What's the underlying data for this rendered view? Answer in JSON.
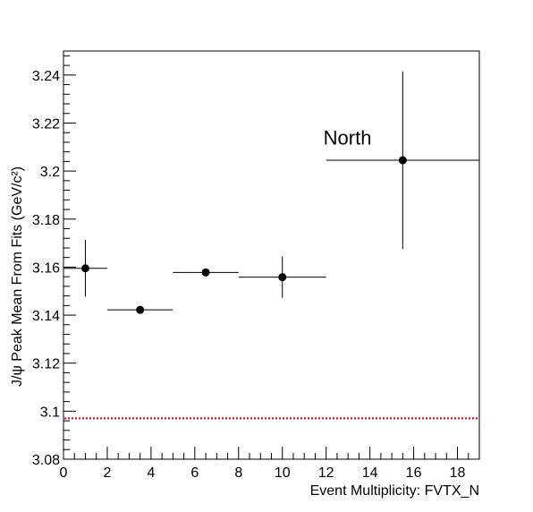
{
  "chart_data": {
    "type": "scatter",
    "xlabel": "Event Multiplicity: FVTX_N",
    "ylabel": "J/ψ Peak Mean From Fits (GeV/c²)",
    "xlim": [
      0,
      19
    ],
    "ylim": [
      3.08,
      3.25
    ],
    "x_ticks": [
      0,
      2,
      4,
      6,
      8,
      10,
      12,
      14,
      16,
      18
    ],
    "x_tick_labels": [
      "0",
      "2",
      "4",
      "6",
      "8",
      "10",
      "12",
      "14",
      "16",
      "18"
    ],
    "y_ticks": [
      3.08,
      3.1,
      3.12,
      3.14,
      3.16,
      3.18,
      3.2,
      3.22,
      3.24
    ],
    "y_tick_labels": [
      "3.08",
      "3.1",
      "3.12",
      "3.14",
      "3.16",
      "3.18",
      "3.2",
      "3.22",
      "3.24"
    ],
    "annotation": {
      "text": "North",
      "x": 12,
      "y": 3.214
    },
    "reference_line": {
      "y": 3.097,
      "color": "#dd0000",
      "style": "dotted"
    },
    "points": [
      {
        "x": 1.0,
        "y": 3.1595,
        "x_low": 0,
        "x_high": 2,
        "y_err": 0.0118
      },
      {
        "x": 3.5,
        "y": 3.1422,
        "x_low": 2,
        "x_high": 5,
        "y_err": 0.001
      },
      {
        "x": 6.5,
        "y": 3.1578,
        "x_low": 5,
        "x_high": 8,
        "y_err": 0.0012
      },
      {
        "x": 10.0,
        "y": 3.1558,
        "x_low": 8,
        "x_high": 12,
        "y_err": 0.0086
      },
      {
        "x": 15.5,
        "y": 3.2045,
        "x_low": 12,
        "x_high": 19,
        "y_err": 0.037
      }
    ]
  }
}
